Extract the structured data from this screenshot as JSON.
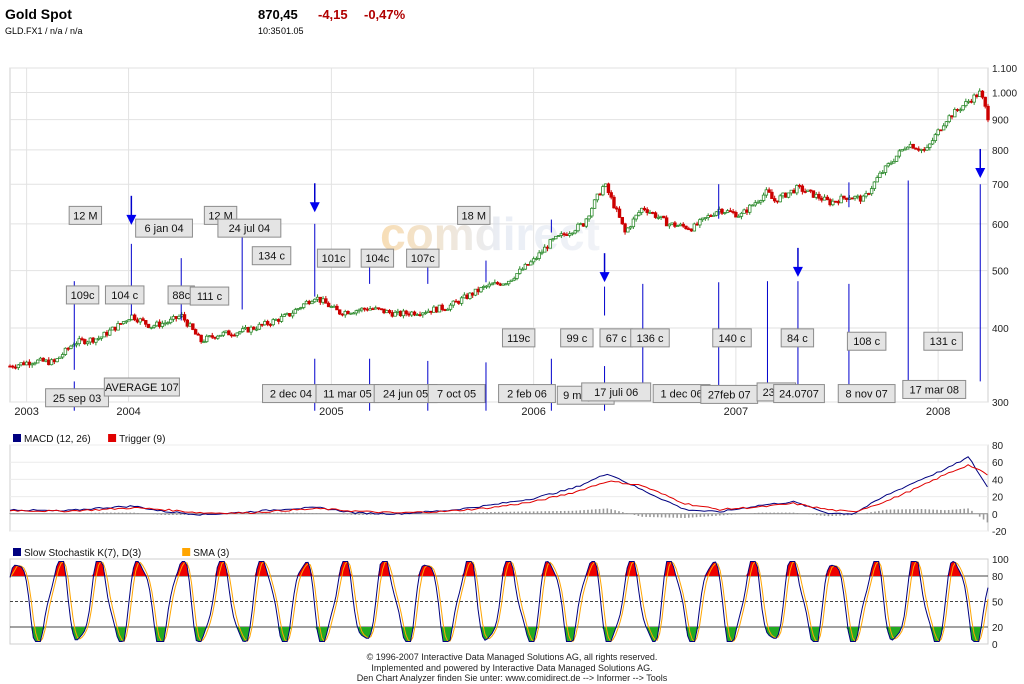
{
  "header": {
    "title": "Gold Spot",
    "symbol_line": "GLD.FX1  /  n/a  /  n/a",
    "price": "870,45",
    "change": "-4,15",
    "change_pct": "-0,47%",
    "time": "10:35",
    "date": "01.05",
    "change_color": "#b00000"
  },
  "footer": {
    "line1": "© 1996-2007 Interactive Data Managed Solutions AG, all rights reserved.",
    "line2": "Implemented and powered by Interactive Data Managed Solutions AG.",
    "line3": "Den Chart Analyzer finden Sie unter: www.comidirect.de --> Informer --> Tools"
  },
  "watermark": "comdirect",
  "chart_data": [
    {
      "type": "candlestick",
      "name": "price",
      "y_scale": "log",
      "ylim": [
        300,
        1100
      ],
      "y_ticks": [
        {
          "value": 300,
          "label": "300"
        },
        {
          "value": 400,
          "label": "400"
        },
        {
          "value": 500,
          "label": "500"
        },
        {
          "value": 600,
          "label": "600"
        },
        {
          "value": 700,
          "label": "700"
        },
        {
          "value": 800,
          "label": "800"
        },
        {
          "value": 900,
          "label": "900"
        },
        {
          "value": 1000,
          "label": "1.000"
        },
        {
          "value": 1100,
          "label": "1.100"
        }
      ],
      "x_range": [
        "2003-06-01",
        "2008-03-31"
      ],
      "x_ticks": [
        {
          "date": "2003-07-01",
          "label": "2003"
        },
        {
          "date": "2004-01-01",
          "label": "2004"
        },
        {
          "date": "2005-01-01",
          "label": "2005"
        },
        {
          "date": "2006-01-01",
          "label": "2006"
        },
        {
          "date": "2007-01-01",
          "label": "2007"
        },
        {
          "date": "2008-01-01",
          "label": "2008"
        }
      ],
      "colors": {
        "up": "#2e8b2e",
        "down": "#cc0000"
      },
      "grid": true,
      "price_path": [
        [
          "2003-06-01",
          345
        ],
        [
          "2003-07-15",
          352
        ],
        [
          "2003-08-20",
          350
        ],
        [
          "2003-09-25",
          378
        ],
        [
          "2003-11-10",
          385
        ],
        [
          "2003-12-15",
          405
        ],
        [
          "2004-01-06",
          420
        ],
        [
          "2004-02-10",
          403
        ],
        [
          "2004-03-15",
          410
        ],
        [
          "2004-04-05",
          420
        ],
        [
          "2004-05-10",
          380
        ],
        [
          "2004-06-10",
          390
        ],
        [
          "2004-07-24",
          395
        ],
        [
          "2004-09-01",
          405
        ],
        [
          "2004-10-15",
          420
        ],
        [
          "2004-12-02",
          452
        ],
        [
          "2005-01-15",
          425
        ],
        [
          "2005-03-11",
          432
        ],
        [
          "2005-05-01",
          422
        ],
        [
          "2005-06-24",
          428
        ],
        [
          "2005-08-01",
          435
        ],
        [
          "2005-10-07",
          470
        ],
        [
          "2005-11-15",
          480
        ],
        [
          "2006-01-01",
          520
        ],
        [
          "2006-02-02",
          560
        ],
        [
          "2006-04-01",
          600
        ],
        [
          "2006-05-09",
          700
        ],
        [
          "2006-06-15",
          580
        ],
        [
          "2006-07-17",
          640
        ],
        [
          "2006-09-01",
          600
        ],
        [
          "2006-10-15",
          590
        ],
        [
          "2006-12-01",
          635
        ],
        [
          "2007-01-10",
          620
        ],
        [
          "2007-02-27",
          680
        ],
        [
          "2007-03-10",
          655
        ],
        [
          "2007-04-23",
          690
        ],
        [
          "2007-06-20",
          652
        ],
        [
          "2007-07-24",
          668
        ],
        [
          "2007-08-20",
          660
        ],
        [
          "2007-09-15",
          720
        ],
        [
          "2007-11-08",
          820
        ],
        [
          "2007-12-10",
          795
        ],
        [
          "2008-01-15",
          900
        ],
        [
          "2008-03-01",
          975
        ],
        [
          "2008-03-17",
          1000
        ],
        [
          "2008-03-31",
          910
        ]
      ],
      "annotations": [
        {
          "label": "12 M",
          "date": "2003-10-15",
          "value": 620
        },
        {
          "label": "109c",
          "date": "2003-10-10",
          "value": 455
        },
        {
          "label": "104 c",
          "date": "2003-12-25",
          "value": 455
        },
        {
          "label": "6 jan 04",
          "date": "2004-03-05",
          "value": 590
        },
        {
          "label": "88c",
          "date": "2004-04-05",
          "value": 455
        },
        {
          "label": "111 c",
          "date": "2004-05-26",
          "value": 453
        },
        {
          "label": "12 M",
          "date": "2004-06-15",
          "value": 620
        },
        {
          "label": "24 jul 04",
          "date": "2004-08-06",
          "value": 590
        },
        {
          "label": "134 c",
          "date": "2004-09-15",
          "value": 530
        },
        {
          "label": "101c",
          "date": "2005-01-05",
          "value": 525
        },
        {
          "label": "104c",
          "date": "2005-03-25",
          "value": 525
        },
        {
          "label": "107c",
          "date": "2005-06-15",
          "value": 525
        },
        {
          "label": "18 M",
          "date": "2005-09-15",
          "value": 620
        },
        {
          "label": "119c",
          "date": "2005-12-05",
          "value": 385
        },
        {
          "label": "99 c",
          "date": "2006-03-20",
          "value": 385
        },
        {
          "label": "67 c",
          "date": "2006-05-30",
          "value": 385
        },
        {
          "label": "136 c",
          "date": "2006-07-30",
          "value": 385
        },
        {
          "label": "140 c",
          "date": "2006-12-25",
          "value": 385
        },
        {
          "label": "84 c",
          "date": "2007-04-22",
          "value": 385
        },
        {
          "label": "108 c",
          "date": "2007-08-25",
          "value": 380
        },
        {
          "label": "131 c",
          "date": "2008-01-10",
          "value": 380
        },
        {
          "label": "25 sep 03",
          "date": "2003-09-30",
          "value": 305
        },
        {
          "label": "AVERAGE 107",
          "date": "2004-01-25",
          "value": 318
        },
        {
          "label": "2 dec 04",
          "date": "2004-10-20",
          "value": 310
        },
        {
          "label": "11 mar 05",
          "date": "2005-01-30",
          "value": 310
        },
        {
          "label": "24 jun 05",
          "date": "2005-05-15",
          "value": 310
        },
        {
          "label": "7 oct 05",
          "date": "2005-08-15",
          "value": 310
        },
        {
          "label": "2 feb 06",
          "date": "2005-12-20",
          "value": 310
        },
        {
          "label": "9 may 06",
          "date": "2006-04-05",
          "value": 308
        },
        {
          "label": "17 juli 06",
          "date": "2006-05-30",
          "value": 312
        },
        {
          "label": "1 dec 06",
          "date": "2006-09-25",
          "value": 310
        },
        {
          "label": "27feb 07",
          "date": "2006-12-20",
          "value": 309
        },
        {
          "label": "23.04",
          "date": "2007-03-15",
          "value": 312
        },
        {
          "label": "24.0707",
          "date": "2007-04-25",
          "value": 310
        },
        {
          "label": "8 nov 07",
          "date": "2007-08-25",
          "value": 310
        },
        {
          "label": "17 mar 08",
          "date": "2007-12-25",
          "value": 315
        }
      ],
      "markers": [
        {
          "date": "2003-09-25",
          "from": 480,
          "to": 340
        },
        {
          "date": "2003-09-25",
          "from": 325,
          "to": 290
        },
        {
          "date": "2004-01-06",
          "from": 555,
          "to": 420
        },
        {
          "date": "2004-04-05",
          "from": 525,
          "to": 412
        },
        {
          "date": "2004-07-24",
          "from": 575,
          "to": 430
        },
        {
          "date": "2004-12-02",
          "from": 600,
          "to": 452
        },
        {
          "date": "2004-12-02",
          "from": 355,
          "to": 290
        },
        {
          "date": "2005-03-11",
          "from": 520,
          "to": 475
        },
        {
          "date": "2005-03-11",
          "from": 355,
          "to": 290
        },
        {
          "date": "2005-06-24",
          "from": 510,
          "to": 475
        },
        {
          "date": "2005-06-24",
          "from": 352,
          "to": 290
        },
        {
          "date": "2005-10-07",
          "from": 520,
          "to": 478
        },
        {
          "date": "2005-10-07",
          "from": 350,
          "to": 290
        },
        {
          "date": "2006-02-02",
          "from": 610,
          "to": 580
        },
        {
          "date": "2006-02-02",
          "from": 355,
          "to": 290
        },
        {
          "date": "2006-05-09",
          "from": 470,
          "to": 420
        },
        {
          "date": "2006-05-09",
          "from": 345,
          "to": 290
        },
        {
          "date": "2006-07-17",
          "from": 475,
          "to": 315
        },
        {
          "date": "2006-12-01",
          "from": 700,
          "to": 612
        },
        {
          "date": "2006-12-01",
          "from": 478,
          "to": 305
        },
        {
          "date": "2007-02-27",
          "from": 480,
          "to": 305
        },
        {
          "date": "2007-04-23",
          "from": 480,
          "to": 302
        },
        {
          "date": "2007-07-24",
          "from": 705,
          "to": 640
        },
        {
          "date": "2007-07-24",
          "from": 475,
          "to": 312
        },
        {
          "date": "2007-11-08",
          "from": 710,
          "to": 322
        },
        {
          "date": "2008-03-17",
          "from": 700,
          "to": 325
        }
      ],
      "arrows": [
        {
          "date": "2004-01-06",
          "value": 600
        },
        {
          "date": "2004-12-02",
          "value": 630
        },
        {
          "date": "2006-05-09",
          "value": 480
        },
        {
          "date": "2007-04-23",
          "value": 490
        },
        {
          "date": "2008-03-17",
          "value": 720
        }
      ]
    },
    {
      "type": "line",
      "name": "macd",
      "legend": [
        {
          "label": "MACD (12, 26)",
          "color": "#000080"
        },
        {
          "label": "Trigger (9)",
          "color": "#e00000"
        }
      ],
      "ylim": [
        -20,
        80
      ],
      "y_ticks": [
        -20,
        0,
        20,
        40,
        60,
        80
      ],
      "series": [
        {
          "name": "MACD (12, 26)",
          "color": "#000080",
          "points": [
            [
              "2003-06-01",
              5
            ],
            [
              "2003-09-01",
              3
            ],
            [
              "2003-11-15",
              7
            ],
            [
              "2004-01-10",
              9
            ],
            [
              "2004-03-01",
              3
            ],
            [
              "2004-05-15",
              -1
            ],
            [
              "2004-08-01",
              2
            ],
            [
              "2004-10-15",
              6
            ],
            [
              "2004-12-10",
              7
            ],
            [
              "2005-02-15",
              1
            ],
            [
              "2005-05-01",
              0
            ],
            [
              "2005-08-01",
              4
            ],
            [
              "2005-10-15",
              10
            ],
            [
              "2006-01-01",
              18
            ],
            [
              "2006-03-15",
              30
            ],
            [
              "2006-05-15",
              47
            ],
            [
              "2006-07-15",
              28
            ],
            [
              "2006-10-01",
              5
            ],
            [
              "2006-12-01",
              2
            ],
            [
              "2007-02-15",
              10
            ],
            [
              "2007-04-15",
              14
            ],
            [
              "2007-06-15",
              1
            ],
            [
              "2007-08-01",
              0
            ],
            [
              "2007-10-01",
              22
            ],
            [
              "2007-12-01",
              40
            ],
            [
              "2008-01-15",
              52
            ],
            [
              "2008-02-25",
              66
            ],
            [
              "2008-03-31",
              30
            ]
          ]
        },
        {
          "name": "Trigger (9)",
          "color": "#e00000",
          "points": [
            [
              "2003-06-01",
              4
            ],
            [
              "2003-09-01",
              3
            ],
            [
              "2003-11-15",
              5
            ],
            [
              "2004-01-10",
              7
            ],
            [
              "2004-03-01",
              5
            ],
            [
              "2004-05-15",
              1
            ],
            [
              "2004-08-01",
              1
            ],
            [
              "2004-10-15",
              4
            ],
            [
              "2004-12-10",
              6
            ],
            [
              "2005-02-15",
              3
            ],
            [
              "2005-05-01",
              1
            ],
            [
              "2005-08-01",
              3
            ],
            [
              "2005-10-15",
              7
            ],
            [
              "2006-01-01",
              14
            ],
            [
              "2006-03-15",
              25
            ],
            [
              "2006-05-15",
              38
            ],
            [
              "2006-07-15",
              33
            ],
            [
              "2006-10-01",
              12
            ],
            [
              "2006-12-01",
              5
            ],
            [
              "2007-02-15",
              8
            ],
            [
              "2007-04-15",
              12
            ],
            [
              "2007-06-15",
              5
            ],
            [
              "2007-08-01",
              2
            ],
            [
              "2007-10-01",
              15
            ],
            [
              "2007-12-01",
              32
            ],
            [
              "2008-01-15",
              46
            ],
            [
              "2008-02-25",
              57
            ],
            [
              "2008-03-31",
              45
            ]
          ]
        }
      ],
      "histogram_color": "#9a9a9a"
    },
    {
      "type": "line",
      "name": "stochastic",
      "legend": [
        {
          "label": "Slow Stochastik K(7), D(3)",
          "color": "#000080"
        },
        {
          "label": "SMA (3)",
          "color": "#ffa500"
        }
      ],
      "ylim": [
        0,
        100
      ],
      "y_ticks": [
        0,
        20,
        50,
        80,
        100
      ],
      "levels": [
        20,
        50,
        80
      ],
      "overbought_fill": "#ee0000",
      "oversold_fill": "#22aa22",
      "series": [
        {
          "name": "Slow Stochastik K(7), D(3)",
          "color": "#000080"
        },
        {
          "name": "SMA (3)",
          "color": "#ffa500"
        }
      ]
    }
  ]
}
